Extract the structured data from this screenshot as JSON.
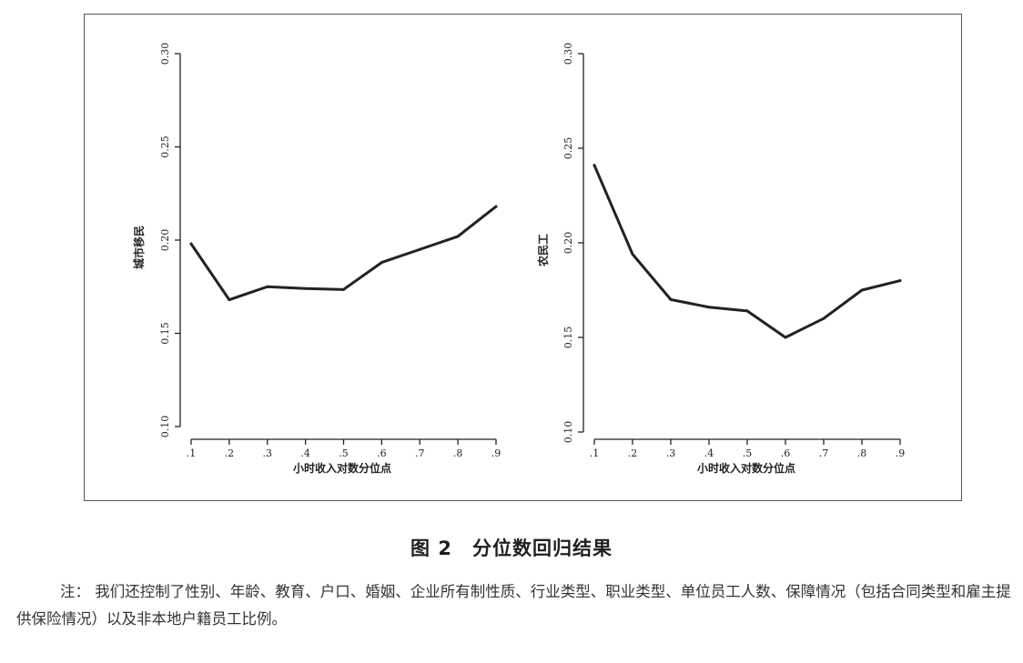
{
  "figure": {
    "caption": "图 2　分位数回归结果",
    "note_label": "注：",
    "note_text": "我们还控制了性别、年龄、教育、户口、婚姻、企业所有制性质、行业类型、职业类型、单位员工人数、保障情况（包括合同类型和雇主提供保险情况）以及非本地户籍员工比例。"
  },
  "chart_data": [
    {
      "type": "line",
      "title": "",
      "xlabel": "小时收入对数分位点",
      "ylabel": "城市移民",
      "x": [
        ".1",
        ".2",
        ".3",
        ".4",
        ".5",
        ".6",
        ".7",
        ".8",
        ".9"
      ],
      "x_values": [
        0.1,
        0.2,
        0.3,
        0.4,
        0.5,
        0.6,
        0.7,
        0.8,
        0.9
      ],
      "yticks": [
        "0.10",
        "0.15",
        "0.20",
        "0.25",
        "0.30"
      ],
      "ylim": [
        0.1,
        0.3
      ],
      "grid": false,
      "series": [
        {
          "values": [
            0.198,
            0.168,
            0.175,
            0.174,
            0.1735,
            0.188,
            0.195,
            0.202,
            0.218
          ]
        }
      ]
    },
    {
      "type": "line",
      "title": "",
      "xlabel": "小时收入对数分位点",
      "ylabel": "农民工",
      "x": [
        ".1",
        ".2",
        ".3",
        ".4",
        ".5",
        ".6",
        ".7",
        ".8",
        ".9"
      ],
      "x_values": [
        0.1,
        0.2,
        0.3,
        0.4,
        0.5,
        0.6,
        0.7,
        0.8,
        0.9
      ],
      "yticks": [
        "0.10",
        "0.15",
        "0.20",
        "0.25",
        "0.30"
      ],
      "ylim": [
        0.1,
        0.3
      ],
      "grid": false,
      "series": [
        {
          "values": [
            0.241,
            0.194,
            0.17,
            0.166,
            0.164,
            0.15,
            0.16,
            0.175,
            0.18
          ]
        }
      ]
    }
  ]
}
